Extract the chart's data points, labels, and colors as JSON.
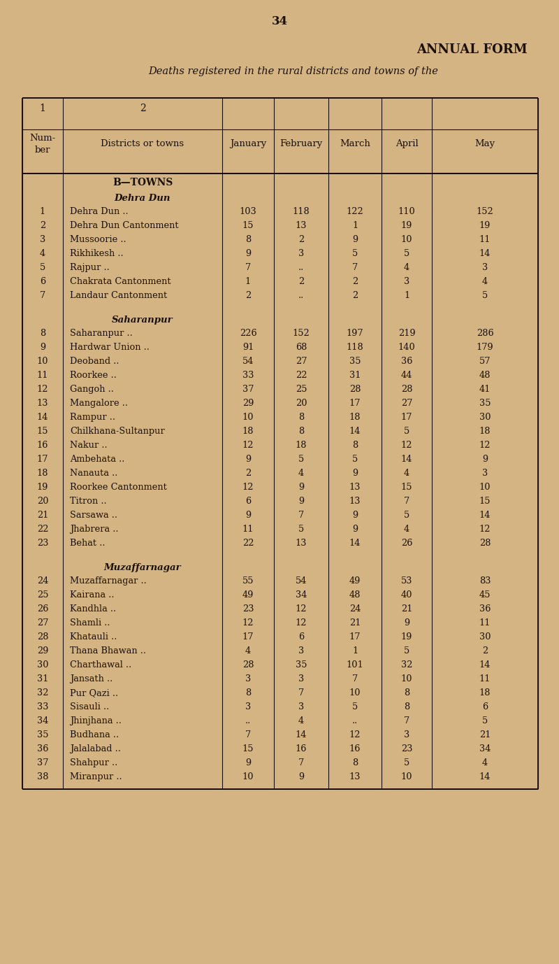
{
  "page_number": "34",
  "title1": "ANNUAL FORM",
  "title2": "Deaths registered in the rural districts and towns of the",
  "bg_color": "#D4B483",
  "text_color": "#1a1008",
  "section_b": "B—TOWNS",
  "subsection_dehra": "Dehra Dun",
  "subsection_saharanpur": "Saharanpur",
  "subsection_muzaffarnagar": "Muzaffarnagar",
  "rows": [
    {
      "num": "1",
      "name": "Dehra Dun",
      "dots": "..",
      "jan": "103",
      "feb": "118",
      "mar": "122",
      "apr": "110",
      "may": "152"
    },
    {
      "num": "2",
      "name": "Dehra Dun Cantonment",
      "dots": "",
      "jan": "15",
      "feb": "13",
      "mar": "1",
      "apr": "19",
      "may": "19"
    },
    {
      "num": "3",
      "name": "Mussoorie",
      "dots": "..",
      "jan": "8",
      "feb": "2",
      "mar": "9",
      "apr": "10",
      "may": "11"
    },
    {
      "num": "4",
      "name": "Rikhikesh",
      "dots": "..",
      "jan": "9",
      "feb": "3",
      "mar": "5",
      "apr": "5",
      "may": "14"
    },
    {
      "num": "5",
      "name": "Rajpur",
      "dots": "..",
      "jan": "7",
      "feb": "..",
      "mar": "7",
      "apr": "4",
      "may": "3"
    },
    {
      "num": "6",
      "name": "Chakrata Cantonment",
      "dots": "",
      "jan": "1",
      "feb": "2",
      "mar": "2",
      "apr": "3",
      "may": "4"
    },
    {
      "num": "7",
      "name": "Landaur Cantonment",
      "dots": "",
      "jan": "2",
      "feb": "..",
      "mar": "2",
      "apr": "1",
      "may": "5"
    },
    {
      "num": "8",
      "name": "Saharanpur",
      "dots": "..",
      "jan": "226",
      "feb": "152",
      "mar": "197",
      "apr": "219",
      "may": "286"
    },
    {
      "num": "9",
      "name": "Hardwar Union",
      "dots": "..",
      "jan": "91",
      "feb": "68",
      "mar": "118",
      "apr": "140",
      "may": "179"
    },
    {
      "num": "10",
      "name": "Deoband",
      "dots": "..",
      "jan": "54",
      "feb": "27",
      "mar": "35",
      "apr": "36",
      "may": "57"
    },
    {
      "num": "11",
      "name": "Roorkee",
      "dots": "..",
      "jan": "33",
      "feb": "22",
      "mar": "31",
      "apr": "44",
      "may": "48"
    },
    {
      "num": "12",
      "name": "Gangoh",
      "dots": "..",
      "jan": "37",
      "feb": "25",
      "mar": "28",
      "apr": "28",
      "may": "41"
    },
    {
      "num": "13",
      "name": "Mangalore",
      "dots": "..",
      "jan": "29",
      "feb": "20",
      "mar": "17",
      "apr": "27",
      "may": "35"
    },
    {
      "num": "14",
      "name": "Rampur",
      "dots": "..",
      "jan": "10",
      "feb": "8",
      "mar": "18",
      "apr": "17",
      "may": "30"
    },
    {
      "num": "15",
      "name": "Chilkhana-Sultanpur",
      "dots": "",
      "jan": "18",
      "feb": "8",
      "mar": "14",
      "apr": "5",
      "may": "18"
    },
    {
      "num": "16",
      "name": "Nakur ..",
      "dots": "..",
      "jan": "12",
      "feb": "18",
      "mar": "8",
      "apr": "12",
      "may": "12"
    },
    {
      "num": "17",
      "name": "Ambehata",
      "dots": "..",
      "jan": "9",
      "feb": "5",
      "mar": "5",
      "apr": "14",
      "may": "9"
    },
    {
      "num": "18",
      "name": "Nanauta",
      "dots": "..",
      "jan": "2",
      "feb": "4",
      "mar": "9",
      "apr": "4",
      "may": "3"
    },
    {
      "num": "19",
      "name": "Roorkee Cantonment",
      "dots": "",
      "jan": "12",
      "feb": "9",
      "mar": "13",
      "apr": "15",
      "may": "10"
    },
    {
      "num": "20",
      "name": "Titron ..",
      "dots": "..",
      "jan": "6",
      "feb": "9",
      "mar": "13",
      "apr": "7",
      "may": "15"
    },
    {
      "num": "21",
      "name": "Sarsawa",
      "dots": "..",
      "jan": "9",
      "feb": "7",
      "mar": "9",
      "apr": "5",
      "may": "14"
    },
    {
      "num": "22",
      "name": "Jhabrera",
      "dots": "..",
      "jan": "11",
      "feb": "5",
      "mar": "9",
      "apr": "4",
      "may": "12"
    },
    {
      "num": "23",
      "name": "Behat",
      "dots": "..",
      "jan": "22",
      "feb": "13",
      "mar": "14",
      "apr": "26",
      "may": "28"
    },
    {
      "num": "24",
      "name": "Muzaffarnagar",
      "dots": "..",
      "jan": "55",
      "feb": "54",
      "mar": "49",
      "apr": "53",
      "may": "83"
    },
    {
      "num": "25",
      "name": "Kairana",
      "dots": "..",
      "jan": "49",
      "feb": "34",
      "mar": "48",
      "apr": "40",
      "may": "45"
    },
    {
      "num": "26",
      "name": "Kandhla",
      "dots": "..",
      "jan": "23",
      "feb": "12",
      "mar": "24",
      "apr": "21",
      "may": "36"
    },
    {
      "num": "27",
      "name": "Shamli",
      "dots": "..",
      "jan": "12",
      "feb": "12",
      "mar": "21",
      "apr": "9",
      "may": "11"
    },
    {
      "num": "28",
      "name": "Khatauli",
      "dots": "..",
      "jan": "17",
      "feb": "6",
      "mar": "17",
      "apr": "19",
      "may": "30"
    },
    {
      "num": "29",
      "name": "Thana Bhawan",
      "dots": "..",
      "jan": "4",
      "feb": "3",
      "mar": "1",
      "apr": "5",
      "may": "2"
    },
    {
      "num": "30",
      "name": "Charthawal",
      "dots": "..",
      "jan": "28",
      "feb": "35",
      "mar": "101",
      "apr": "32",
      "may": "14"
    },
    {
      "num": "31",
      "name": "Jansath",
      "dots": "..",
      "jan": "3",
      "feb": "3",
      "mar": "7",
      "apr": "10",
      "may": "11"
    },
    {
      "num": "32",
      "name": "Pur Qazi",
      "dots": "..",
      "jan": "8",
      "feb": "7",
      "mar": "10",
      "apr": "8",
      "may": "18"
    },
    {
      "num": "33",
      "name": "Sisauli",
      "dots": "..",
      "jan": "3",
      "feb": "3",
      "mar": "5",
      "apr": "8",
      "may": "6"
    },
    {
      "num": "34",
      "name": "Jhinjhana",
      "dots": "..",
      "jan": "..",
      "feb": "4",
      "mar": "..",
      "apr": "7",
      "may": "5"
    },
    {
      "num": "35",
      "name": "Budhana",
      "dots": "..",
      "jan": "7",
      "feb": "14",
      "mar": "12",
      "apr": "3",
      "may": "21"
    },
    {
      "num": "36",
      "name": "Jalalabad",
      "dots": "..",
      "jan": "15",
      "feb": "16",
      "mar": "16",
      "apr": "23",
      "may": "34"
    },
    {
      "num": "37",
      "name": "Shahpur",
      "dots": "..",
      "jan": "9",
      "feb": "7",
      "mar": "8",
      "apr": "5",
      "may": "4"
    },
    {
      "num": "38",
      "name": "Miranpur",
      "dots": "..",
      "jan": "10",
      "feb": "9",
      "mar": "13",
      "apr": "10",
      "may": "14"
    }
  ]
}
